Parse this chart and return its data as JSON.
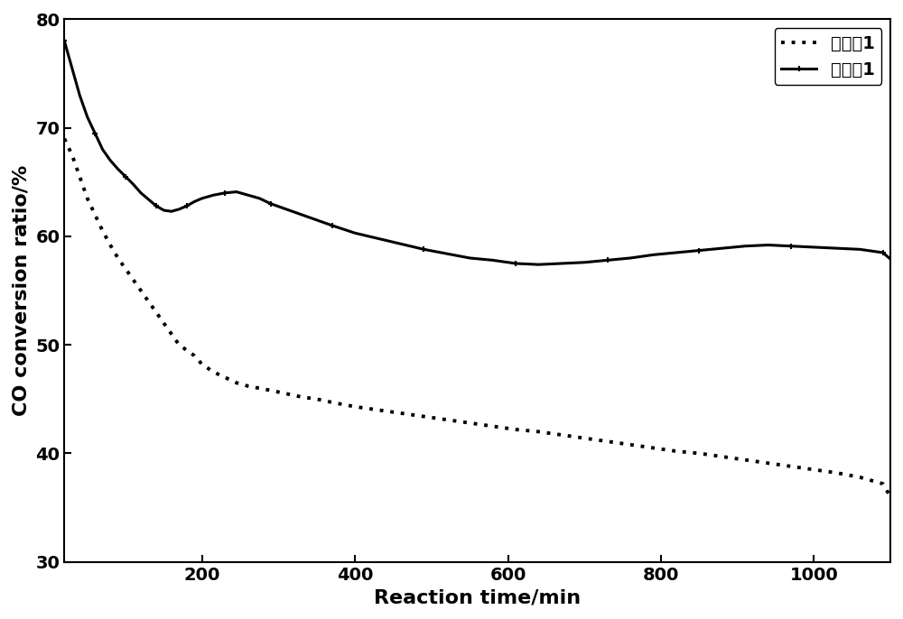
{
  "title": "",
  "xlabel": "Reaction time/min",
  "ylabel": "CO conversion ratio/%",
  "xlim": [
    20,
    1100
  ],
  "ylim": [
    30,
    80
  ],
  "yticks": [
    30,
    40,
    50,
    60,
    70,
    80
  ],
  "xticks": [
    200,
    400,
    600,
    800,
    1000
  ],
  "legend_labels": [
    "对比例1",
    "实施例1"
  ],
  "line_color": "#000000",
  "background_color": "#ffffff",
  "series1_x": [
    20,
    30,
    40,
    50,
    60,
    70,
    80,
    90,
    100,
    110,
    120,
    130,
    140,
    150,
    160,
    170,
    180,
    190,
    200,
    215,
    230,
    245,
    260,
    275,
    290,
    310,
    330,
    350,
    370,
    400,
    430,
    460,
    490,
    520,
    550,
    580,
    610,
    640,
    670,
    700,
    730,
    760,
    790,
    820,
    850,
    880,
    910,
    940,
    970,
    1000,
    1030,
    1060,
    1090,
    1100
  ],
  "series1_y": [
    69.0,
    67.5,
    65.5,
    63.5,
    62.0,
    60.5,
    59.2,
    58.0,
    57.0,
    56.0,
    55.0,
    54.0,
    53.0,
    52.0,
    51.0,
    50.0,
    49.5,
    49.0,
    48.2,
    47.5,
    47.0,
    46.5,
    46.2,
    46.0,
    45.8,
    45.5,
    45.2,
    45.0,
    44.7,
    44.3,
    44.0,
    43.7,
    43.4,
    43.1,
    42.8,
    42.5,
    42.2,
    42.0,
    41.7,
    41.4,
    41.1,
    40.8,
    40.5,
    40.2,
    40.0,
    39.7,
    39.4,
    39.1,
    38.8,
    38.5,
    38.2,
    37.8,
    37.2,
    36.0
  ],
  "series2_x": [
    20,
    30,
    40,
    50,
    60,
    70,
    80,
    90,
    100,
    110,
    120,
    130,
    140,
    150,
    160,
    170,
    180,
    190,
    200,
    215,
    230,
    245,
    260,
    275,
    290,
    310,
    330,
    350,
    370,
    400,
    430,
    460,
    490,
    520,
    550,
    580,
    610,
    640,
    670,
    700,
    730,
    760,
    790,
    820,
    850,
    880,
    910,
    940,
    970,
    1000,
    1030,
    1060,
    1090,
    1100
  ],
  "series2_y": [
    78.0,
    75.5,
    73.0,
    71.0,
    69.5,
    68.0,
    67.0,
    66.2,
    65.5,
    64.8,
    64.0,
    63.4,
    62.8,
    62.4,
    62.3,
    62.5,
    62.8,
    63.2,
    63.5,
    63.8,
    64.0,
    64.1,
    63.8,
    63.5,
    63.0,
    62.5,
    62.0,
    61.5,
    61.0,
    60.3,
    59.8,
    59.3,
    58.8,
    58.4,
    58.0,
    57.8,
    57.5,
    57.4,
    57.5,
    57.6,
    57.8,
    58.0,
    58.3,
    58.5,
    58.7,
    58.9,
    59.1,
    59.2,
    59.1,
    59.0,
    58.9,
    58.8,
    58.5,
    57.9
  ]
}
